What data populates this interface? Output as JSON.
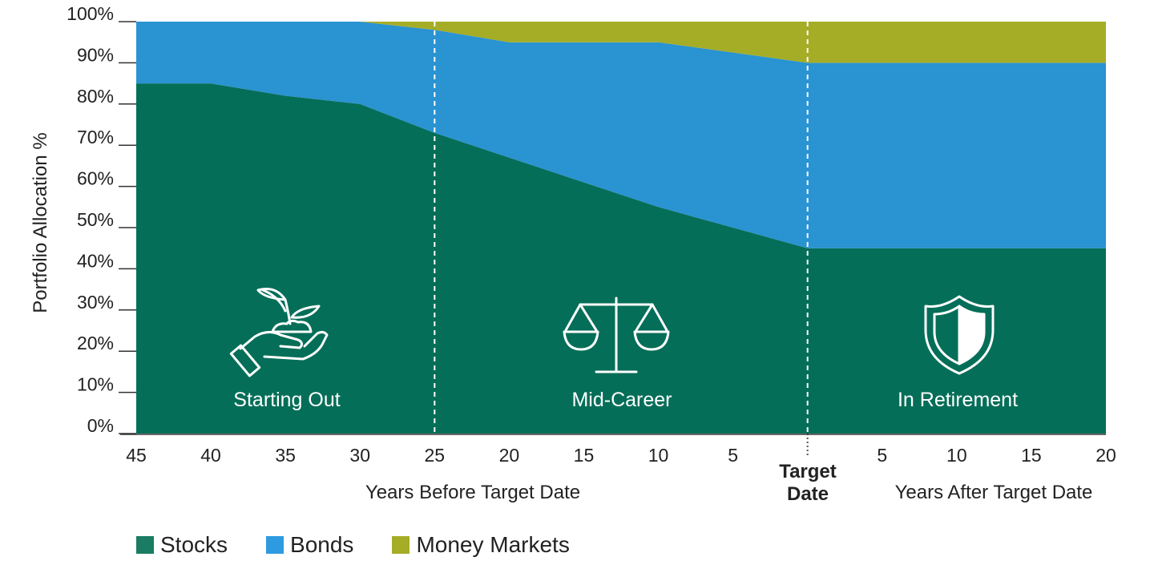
{
  "chart_data": {
    "type": "area",
    "stacked": true,
    "ylabel": "Portfolio Allocation %",
    "xlabel_before": "Years Before Target Date",
    "xlabel_after": "Years After Target Date",
    "target_label_line1": "Target",
    "target_label_line2": "Date",
    "ylim": [
      0,
      100
    ],
    "y_ticks": [
      "0%",
      "10%",
      "20%",
      "30%",
      "40%",
      "50%",
      "60%",
      "70%",
      "80%",
      "90%",
      "100%"
    ],
    "x_tick_labels_before": [
      "45",
      "40",
      "35",
      "30",
      "25",
      "20",
      "15",
      "10",
      "5"
    ],
    "x_tick_labels_after": [
      "5",
      "10",
      "15",
      "20"
    ],
    "x": [
      -45,
      -40,
      -35,
      -30,
      -25,
      -20,
      -15,
      -10,
      -5,
      0,
      5,
      10,
      15,
      20
    ],
    "series": [
      {
        "name": "Stocks",
        "color": "#056e58",
        "values": [
          85,
          85,
          82,
          80,
          73,
          67,
          61,
          55,
          50,
          45,
          45,
          45,
          45,
          45
        ]
      },
      {
        "name": "Bonds",
        "color": "#2a93d1",
        "values": [
          15,
          15,
          18,
          20,
          25,
          28,
          34,
          40,
          42.5,
          45,
          45,
          45,
          45,
          45
        ]
      },
      {
        "name": "Money Markets",
        "color": "#a5ad26",
        "values": [
          0,
          0,
          0,
          0,
          2,
          5,
          5,
          5,
          7.5,
          10,
          10,
          10,
          10,
          10
        ]
      }
    ],
    "phases": [
      {
        "label": "Starting Out",
        "icon": "plant-in-hand-icon"
      },
      {
        "label": "Mid-Career",
        "icon": "balance-scale-icon"
      },
      {
        "label": "In Retirement",
        "icon": "shield-icon"
      }
    ],
    "dividers_at_x": [
      -25,
      0
    ]
  },
  "legend": {
    "items": [
      {
        "label": "Stocks",
        "color": "#1a7c62"
      },
      {
        "label": "Bonds",
        "color": "#2e9be0"
      },
      {
        "label": "Money Markets",
        "color": "#a5ad26"
      }
    ]
  }
}
